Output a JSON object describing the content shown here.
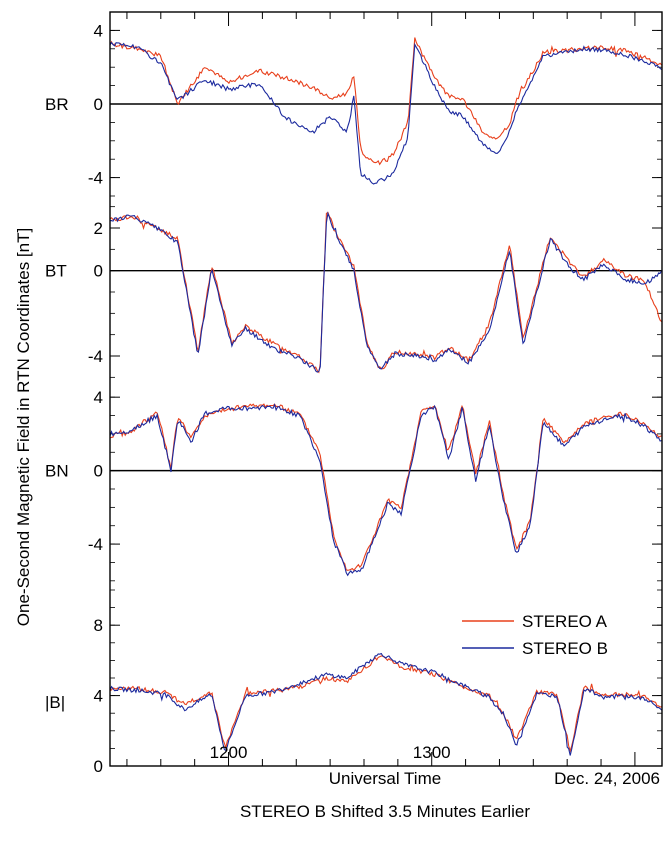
{
  "figure": {
    "ylabel": "One-Second Magnetic Field in RTN Coordinates [nT]",
    "xlabel": "Universal Time",
    "date": "Dec. 24, 2006",
    "caption": "STEREO B Shifted 3.5 Minutes Earlier"
  },
  "chart_data": {
    "type": "line",
    "x_unit": "UT (HHMM)",
    "x_ticks": [
      "1200",
      "1300"
    ],
    "xlim": [
      "1125",
      "1327"
    ],
    "colors": {
      "stereo_a": "#e8401c",
      "stereo_b": "#1c2a9e"
    },
    "legend": {
      "placement": "lower-panel-right",
      "entries": [
        "STEREO A",
        "STEREO B"
      ]
    },
    "panels": [
      {
        "label": "BR",
        "ylim": [
          -5,
          5
        ],
        "y_ticks": [
          "4",
          "0",
          "-4"
        ],
        "y_tick_values": [
          4,
          0,
          -4
        ],
        "zero_line": true,
        "x_minutes": [
          0,
          8,
          15,
          20,
          28,
          35,
          44,
          52,
          60,
          65,
          70,
          72,
          74,
          78,
          82,
          84,
          88,
          90,
          96,
          100,
          104,
          110,
          114,
          118,
          120,
          128,
          134,
          140,
          146,
          152,
          158,
          163
        ],
        "series": [
          {
            "name": "STEREO A",
            "values": [
              3.3,
              3.0,
              2.6,
              0.0,
              2.0,
              1.2,
              1.8,
              1.4,
              0.9,
              0.3,
              0.6,
              1.5,
              -2.5,
              -3.3,
              -3.0,
              -2.6,
              -1.0,
              3.5,
              1.4,
              0.4,
              0.3,
              -1.5,
              -2.0,
              -1.1,
              0.2,
              2.8,
              2.9,
              3.0,
              3.1,
              2.9,
              2.5,
              2.1
            ]
          },
          {
            "name": "STEREO B",
            "values": [
              3.3,
              3.1,
              2.2,
              0.2,
              1.3,
              0.8,
              1.1,
              -0.8,
              -1.5,
              -0.7,
              -1.5,
              0.4,
              -3.8,
              -4.3,
              -4.0,
              -3.6,
              -1.8,
              3.3,
              0.9,
              -0.4,
              -0.6,
              -2.2,
              -2.8,
              -1.5,
              -0.4,
              2.6,
              2.8,
              3.0,
              2.9,
              2.7,
              2.3,
              1.9
            ]
          }
        ]
      },
      {
        "label": "BT",
        "ylim": [
          -5.5,
          3.5
        ],
        "y_ticks": [
          "2",
          "0",
          "-4"
        ],
        "y_tick_values": [
          2,
          0,
          -4
        ],
        "zero_line": true,
        "x_minutes": [
          0,
          6,
          14,
          20,
          26,
          30,
          36,
          40,
          48,
          56,
          62,
          64,
          66,
          72,
          76,
          80,
          84,
          90,
          96,
          100,
          106,
          112,
          118,
          122,
          130,
          136,
          140,
          146,
          152,
          158,
          163
        ],
        "series": [
          {
            "name": "STEREO A",
            "values": [
              2.4,
              2.5,
              2.0,
              1.5,
              -3.8,
              0.3,
              -3.4,
              -2.6,
              -3.4,
              -4.0,
              -4.7,
              3.0,
              2.0,
              0.2,
              -3.5,
              -4.7,
              -3.8,
              -3.9,
              -4.1,
              -3.6,
              -4.2,
              -2.5,
              1.2,
              -3.2,
              1.6,
              0.3,
              -0.3,
              0.5,
              -0.2,
              -0.5,
              -2.5
            ]
          },
          {
            "name": "STEREO B",
            "values": [
              2.3,
              2.6,
              2.0,
              1.3,
              -4.0,
              0.1,
              -3.5,
              -2.7,
              -3.6,
              -4.1,
              -4.8,
              2.7,
              2.0,
              0.0,
              -3.6,
              -4.6,
              -3.9,
              -4.0,
              -4.2,
              -3.7,
              -4.3,
              -2.8,
              1.0,
              -3.5,
              1.5,
              0.1,
              -0.4,
              0.3,
              -0.4,
              -0.6,
              -0.1
            ]
          }
        ]
      },
      {
        "label": "BN",
        "ylim": [
          -6.5,
          4.5
        ],
        "y_ticks": [
          "4",
          "0",
          "-4"
        ],
        "y_tick_values": [
          4,
          0,
          -4
        ],
        "zero_line": true,
        "x_minutes": [
          0,
          6,
          14,
          18,
          20,
          24,
          28,
          34,
          40,
          48,
          56,
          62,
          66,
          70,
          74,
          78,
          82,
          86,
          92,
          96,
          100,
          104,
          108,
          112,
          116,
          120,
          124,
          128,
          134,
          140,
          146,
          152,
          158,
          163
        ],
        "series": [
          {
            "name": "STEREO A",
            "values": [
              1.9,
              2.1,
              3.2,
              0.1,
              3.0,
              1.8,
              3.0,
              3.3,
              3.5,
              3.6,
              3.1,
              1.0,
              -3.5,
              -5.4,
              -5.2,
              -3.5,
              -1.6,
              -2.1,
              3.3,
              3.5,
              1.0,
              3.6,
              -0.2,
              2.7,
              -1.2,
              -4.3,
              -2.8,
              2.9,
              1.5,
              2.6,
              2.9,
              3.1,
              2.5,
              1.8
            ]
          },
          {
            "name": "STEREO B",
            "values": [
              2.0,
              2.2,
              3.0,
              0.0,
              2.8,
              1.6,
              3.1,
              3.4,
              3.4,
              3.5,
              3.0,
              0.6,
              -3.8,
              -5.6,
              -5.5,
              -3.7,
              -1.8,
              -2.3,
              3.1,
              3.4,
              0.6,
              3.4,
              -0.5,
              2.5,
              -1.5,
              -4.5,
              -3.0,
              2.7,
              1.3,
              2.4,
              2.8,
              3.0,
              2.4,
              1.6
            ]
          }
        ]
      },
      {
        "label": "|B|",
        "ylim": [
          0,
          10
        ],
        "y_ticks": [
          "8",
          "4",
          "0"
        ],
        "y_tick_values": [
          8,
          4,
          0
        ],
        "zero_line": false,
        "x_minutes": [
          0,
          8,
          16,
          22,
          30,
          34,
          40,
          48,
          56,
          64,
          70,
          76,
          80,
          86,
          96,
          104,
          112,
          116,
          120,
          126,
          132,
          136,
          140,
          146,
          152,
          158,
          163
        ],
        "series": [
          {
            "name": "STEREO A",
            "values": [
              4.4,
              4.4,
              4.2,
              3.5,
              4.2,
              1.0,
              4.1,
              4.3,
              4.5,
              5.0,
              4.8,
              5.7,
              6.3,
              5.6,
              5.2,
              4.5,
              4.0,
              3.1,
              1.5,
              4.2,
              4.1,
              0.8,
              4.5,
              4.0,
              4.1,
              3.9,
              3.3
            ]
          },
          {
            "name": "STEREO B",
            "values": [
              4.4,
              4.3,
              4.1,
              3.2,
              4.1,
              0.8,
              4.0,
              4.2,
              4.7,
              5.2,
              5.0,
              5.9,
              6.4,
              5.8,
              5.3,
              4.6,
              3.9,
              3.0,
              1.2,
              4.1,
              4.0,
              0.6,
              4.4,
              3.9,
              4.0,
              3.8,
              3.2
            ]
          }
        ]
      }
    ]
  }
}
